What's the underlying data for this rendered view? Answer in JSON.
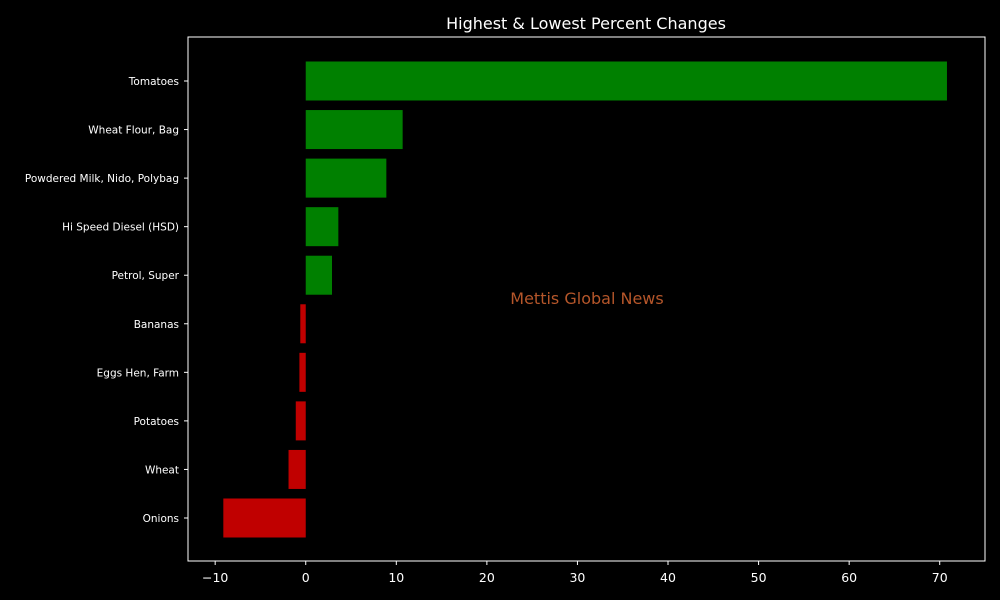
{
  "chart_data": {
    "type": "bar",
    "orientation": "horizontal",
    "title": "Highest & Lowest Percent Changes",
    "xlabel": "",
    "ylabel": "",
    "categories": [
      "Tomatoes",
      "Wheat Flour, Bag",
      "Powdered Milk, Nido, Polybag",
      "Hi Speed Diesel (HSD)",
      "Petrol, Super",
      "Bananas",
      "Eggs Hen, Farm",
      "Potatoes",
      "Wheat",
      "Onions"
    ],
    "values": [
      70.8,
      10.7,
      8.9,
      3.6,
      2.9,
      -0.6,
      -0.7,
      -1.1,
      -1.9,
      -9.1
    ],
    "xlim": [
      -13,
      75
    ],
    "xticks": [
      -10,
      0,
      10,
      20,
      30,
      40,
      50,
      60,
      70
    ],
    "xtick_labels": [
      "−10",
      "0",
      "10",
      "20",
      "30",
      "40",
      "50",
      "60",
      "70"
    ],
    "grid": false,
    "legend": "none",
    "colors": {
      "positive": "#008000",
      "negative": "#c00000",
      "background": "#000000",
      "text": "#ffffff",
      "axes": "#ffffff",
      "watermark": "#b5562a"
    },
    "watermark": "Mettis Global News"
  }
}
